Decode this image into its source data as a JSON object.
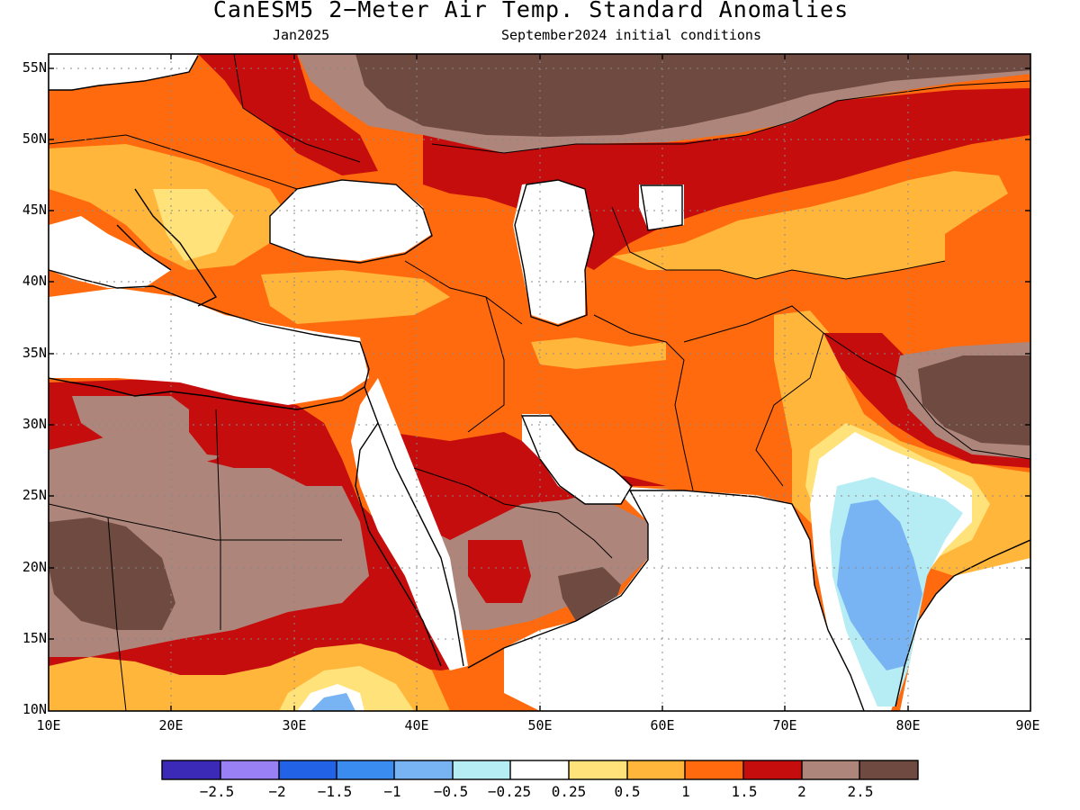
{
  "title": "CanESM5 2−Meter Air Temp. Standard Anomalies",
  "subtitle_left": "Jan2025",
  "subtitle_right": "September2024 initial conditions",
  "lat_labels": [
    "55N",
    "50N",
    "45N",
    "40N",
    "35N",
    "30N",
    "25N",
    "20N",
    "15N",
    "10N"
  ],
  "lon_labels": [
    "10E",
    "20E",
    "30E",
    "40E",
    "50E",
    "60E",
    "70E",
    "80E",
    "90E"
  ],
  "colorbar": {
    "colors": [
      "#3b2ab8",
      "#9a80f5",
      "#2262e6",
      "#3b8cf0",
      "#78b4f4",
      "#b6ecf4",
      "#ffffff",
      "#ffe27a",
      "#ffb63a",
      "#ff6a0e",
      "#c60d0d",
      "#ad857a",
      "#6e4a40"
    ],
    "labels": [
      "−2.5",
      "−2",
      "−1.5",
      "−1",
      "−0.5",
      "−0.25",
      "0.25",
      "0.5",
      "1",
      "1.5",
      "2",
      "2.5"
    ]
  },
  "map_data": {
    "lon_range": [
      10,
      90
    ],
    "lat_range": [
      10,
      56
    ],
    "colors": {
      "neg_strong": "#78b4f4",
      "neg": "#b6ecf4",
      "light_yellow": "#ffe27a",
      "yellow": "#ffb63a",
      "orange": "#ff6a0e",
      "red": "#c60d0d",
      "brown_light": "#ad857a",
      "brown_dark": "#6e4a40"
    }
  }
}
